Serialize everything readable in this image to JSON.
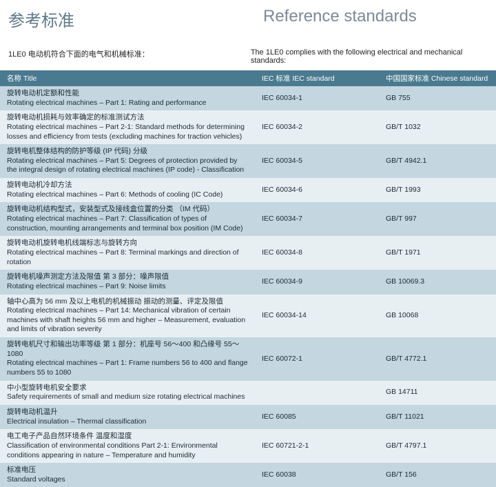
{
  "heading": {
    "cn": "参考标准",
    "en": "Reference standards"
  },
  "subtitle": {
    "cn": "1LE0 电动机符合下面的电气和机械标准：",
    "en": "The 1LE0 complies with the following electrical and mechanical standards:"
  },
  "columns": {
    "title": "名称  Title",
    "iec": "IEC 标准   IEC standard",
    "cn_std": "中国国家标准   Chinese standard"
  },
  "rows": [
    {
      "cn": "旋转电动机定额和性能",
      "en": "Rotating electrical machines – Part 1: Rating and performance",
      "iec": "IEC 60034-1",
      "std": "GB 755"
    },
    {
      "cn": "旋转电动机损耗与效率确定的标准测试方法",
      "en": "Rotating electrical machines – Part 2-1: Standard methods for determining losses and efficiency from tests (excluding machines for traction vehicles)",
      "iec": "IEC 60034-2",
      "std": "GB/T 1032"
    },
    {
      "cn": "旋转电机整体结构的防护等级 (IP 代码) 分级",
      "en": "Rotating electrical machines – Part 5: Degrees of protection provided by the integral design of rotating electrical machines (IP code)  - Classification",
      "iec": "IEC 60034-5",
      "std": "GB/T 4942.1"
    },
    {
      "cn": "旋转电动机冷却方法",
      "en": "Rotating electrical machines – Part 6: Methods of cooling (IC Code)",
      "iec": "IEC 60034-6",
      "std": "GB/T 1993"
    },
    {
      "cn": "旋转电动机结构型式，安装型式及接线盒位置的分类 （IM 代码）",
      "en": "Rotating electrical machines – Part 7: Classification of types of construction, mounting arrangements and terminal box position (IM Code)",
      "iec": "IEC 60034-7",
      "std": "GB/T 997"
    },
    {
      "cn": "旋转电动机旋转电机线端标志与旋转方向",
      "en": "Rotating electrical machines – Part 8: Terminal markings and direction of rotation",
      "iec": "IEC 60034-8",
      "std": "GB/T 1971"
    },
    {
      "cn": "旋转电机噪声测定方法及限值  第 3 部分：噪声限值",
      "en": "Rotating electrical machines – Part 9: Noise limits",
      "iec": "IEC 60034-9",
      "std": "GB 10069.3"
    },
    {
      "cn": "轴中心高为 56 mm 及以上电机的机械振动  振动的测量、评定及限值",
      "en": "Rotating electrical machines – Part 14: Mechanical vibration of certain machines with shaft heights 56 mm and higher – Measurement, evaluation and limits of vibration severity",
      "iec": "IEC 60034-14",
      "std": "GB 10068"
    },
    {
      "cn": "旋转电机尺寸和输出功率等级  第 1 部分：机座号 56～400 和凸缘号 55～1080",
      "en": "Rotating electrical machines – Part 1: Frame numbers 56 to 400 and flange numbers 55 to 1080",
      "iec": "IEC 60072-1",
      "std": "GB/T 4772.1"
    },
    {
      "cn": "中小型旋转电机安全要求",
      "en": "Safety requirements of small and medium size rotating electrical machines",
      "iec": "",
      "std": "GB 14711"
    },
    {
      "cn": "旋转电动机温升",
      "en": "Electrical insulation – Thermal classification",
      "iec": "IEC 60085",
      "std": "GB/T 11021"
    },
    {
      "cn": "电工电子产品自然环境条件  温度和湿度",
      "en": "Classification of environmental conditions Part 2-1: Environmental conditions appearing in nature – Temperature and humidity",
      "iec": "IEC 60721-2-1",
      "std": "GB/T 4797.1"
    },
    {
      "cn": "标准电压",
      "en": "Standard voltages",
      "iec": "IEC 60038",
      "std": "GB/T 156"
    }
  ]
}
